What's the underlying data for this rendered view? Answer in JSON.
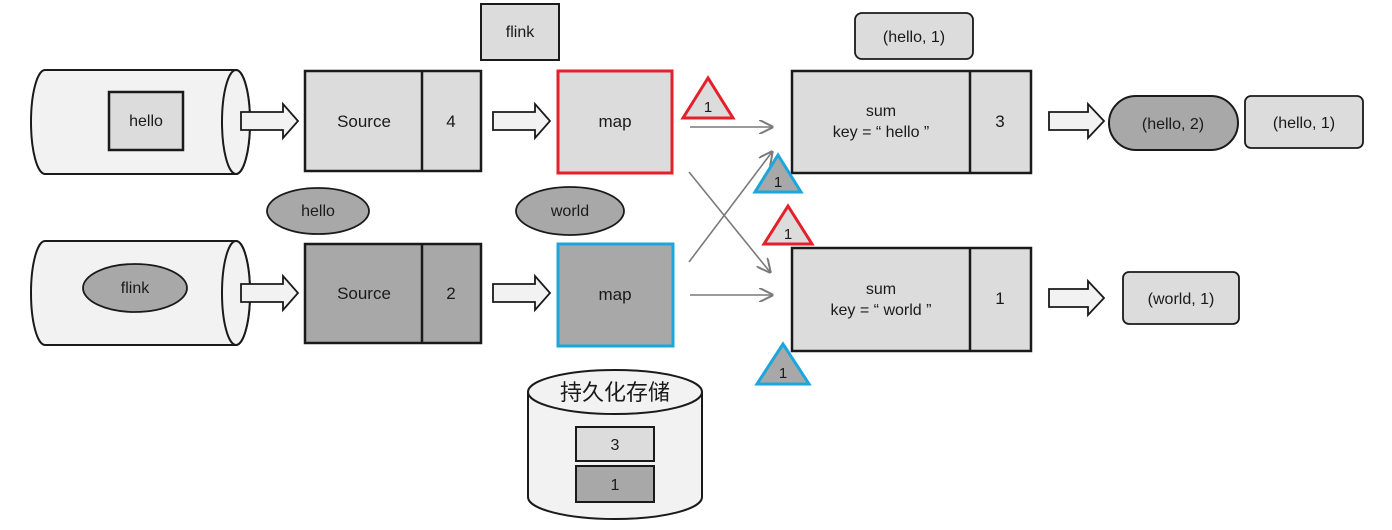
{
  "colors": {
    "light_fill": "#dcdcdc",
    "dark_fill": "#a8a8a8",
    "cylinder_fill": "#f2f2f2",
    "stroke": "#1a1a1a",
    "red": "#e4202a",
    "blue": "#1ba7dc",
    "arrow_line": "#7a7a7a"
  },
  "streams": {
    "top": {
      "record": "hello",
      "pending": "flink"
    },
    "bottom": {
      "record": "flink"
    }
  },
  "sources": {
    "top": {
      "label": "Source",
      "offset": "4"
    },
    "bottom": {
      "label": "Source",
      "offset": "2",
      "emitted": "hello"
    }
  },
  "maps": {
    "top": {
      "label": "map"
    },
    "bottom": {
      "label": "map",
      "emitted": "world"
    }
  },
  "barriers": {
    "red_top": "1",
    "blue_top": "1",
    "red_bottom": "1",
    "blue_bottom": "1"
  },
  "sums": {
    "top": {
      "line1": "sum",
      "line2": "key = “ hello ”",
      "count": "3",
      "input": "(hello, 1)",
      "outputs": [
        "(hello, 2)",
        "(hello, 1)"
      ]
    },
    "bottom": {
      "line1": "sum",
      "line2": "key = “ world ”",
      "count": "1",
      "outputs": [
        "(world, 1)"
      ]
    }
  },
  "storage": {
    "title": "持久化存储",
    "values": [
      "3",
      "1"
    ]
  }
}
